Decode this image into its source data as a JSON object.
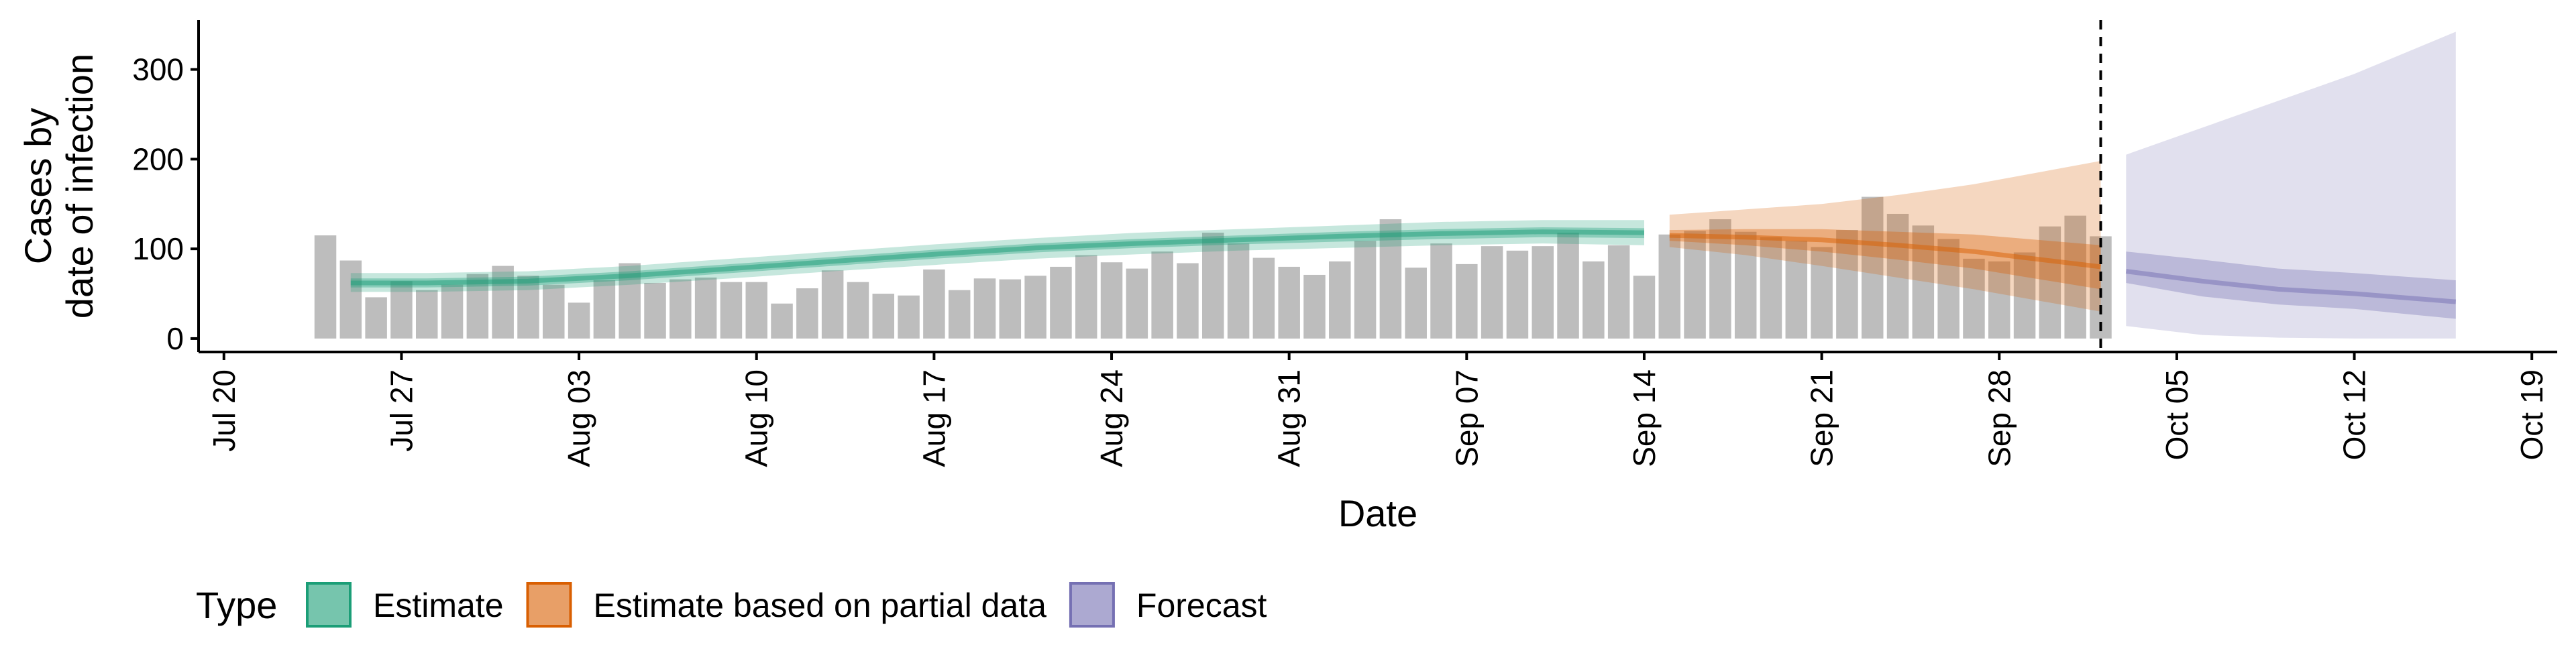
{
  "chart_data": {
    "type": "bar",
    "title": "",
    "xlabel": "Date",
    "ylabel_lines": [
      "Cases by",
      "date of infection"
    ],
    "yticks": [
      0,
      100,
      200,
      300
    ],
    "ylim": [
      -15,
      355
    ],
    "xlim": [
      "2020-07-19",
      "2020-10-20"
    ],
    "xtick_dates": [
      "2020-07-20",
      "2020-07-27",
      "2020-08-03",
      "2020-08-10",
      "2020-08-17",
      "2020-08-24",
      "2020-08-31",
      "2020-09-07",
      "2020-09-14",
      "2020-09-21",
      "2020-09-28",
      "2020-10-05",
      "2020-10-12",
      "2020-10-19"
    ],
    "xtick_labels": [
      "Jul 20",
      "Jul 27",
      "Aug 03",
      "Aug 10",
      "Aug 17",
      "Aug 24",
      "Aug 31",
      "Sep 07",
      "Sep 14",
      "Sep 21",
      "Sep 28",
      "Oct 05",
      "Oct 12",
      "Oct 19"
    ],
    "grid": false,
    "legend_position": "bottom-left",
    "reference_line_date": "2020-10-02",
    "colors": {
      "bar": "#bdbdbd",
      "estimate": "#1b9e77",
      "partial": "#d95f02",
      "forecast": "#7570b3"
    },
    "legend": {
      "title": "Type",
      "items": [
        {
          "label": "Estimate",
          "key": "estimate"
        },
        {
          "label": "Estimate based on partial data",
          "key": "partial"
        },
        {
          "label": "Forecast",
          "key": "forecast"
        }
      ]
    },
    "reported_cases": {
      "start_date": "2020-07-24",
      "values": [
        115,
        87,
        46,
        64,
        54,
        60,
        72,
        81,
        70,
        60,
        40,
        65,
        84,
        62,
        66,
        68,
        63,
        63,
        39,
        56,
        76,
        63,
        50,
        48,
        77,
        54,
        67,
        66,
        70,
        80,
        93,
        85,
        78,
        97,
        84,
        118,
        106,
        90,
        80,
        71,
        86,
        109,
        133,
        79,
        106,
        83,
        103,
        98,
        103,
        118,
        86,
        104,
        70,
        116,
        120,
        133,
        119,
        113,
        109,
        102,
        121,
        158,
        139,
        126,
        111,
        89,
        86,
        96,
        125,
        137,
        114
      ]
    },
    "series": [
      {
        "name": "Estimate",
        "key": "estimate",
        "dates": [
          "2020-07-25",
          "2020-07-28",
          "2020-08-01",
          "2020-08-05",
          "2020-08-09",
          "2020-08-13",
          "2020-08-17",
          "2020-08-21",
          "2020-08-25",
          "2020-08-29",
          "2020-09-02",
          "2020-09-06",
          "2020-09-10",
          "2020-09-14"
        ],
        "median": [
          62,
          62,
          64,
          70,
          78,
          86,
          94,
          101,
          106,
          110,
          114,
          117,
          119,
          118
        ],
        "lower50": [
          57,
          57,
          59,
          65,
          73,
          81,
          89,
          96,
          101,
          105,
          108,
          111,
          113,
          112
        ],
        "upper50": [
          67,
          67,
          69,
          75,
          83,
          91,
          99,
          106,
          111,
          115,
          119,
          122,
          124,
          123
        ],
        "lower90": [
          52,
          52,
          54,
          60,
          67,
          75,
          82,
          89,
          94,
          98,
          101,
          104,
          106,
          104
        ],
        "upper90": [
          73,
          73,
          75,
          81,
          89,
          97,
          105,
          112,
          118,
          122,
          126,
          130,
          132,
          132
        ]
      },
      {
        "name": "Estimate based on partial data",
        "key": "partial",
        "dates": [
          "2020-09-15",
          "2020-09-18",
          "2020-09-21",
          "2020-09-24",
          "2020-09-27",
          "2020-10-02"
        ],
        "median": [
          115,
          113,
          110,
          104,
          97,
          80
        ],
        "lower50": [
          109,
          104,
          97,
          88,
          78,
          55
        ],
        "upper50": [
          121,
          122,
          122,
          119,
          116,
          104
        ],
        "lower90": [
          102,
          93,
          81,
          68,
          55,
          30
        ],
        "upper90": [
          138,
          144,
          150,
          160,
          172,
          198
        ]
      },
      {
        "name": "Forecast",
        "key": "forecast",
        "dates": [
          "2020-10-03",
          "2020-10-06",
          "2020-10-09",
          "2020-10-12",
          "2020-10-16"
        ],
        "median": [
          75,
          64,
          55,
          50,
          41
        ],
        "lower50": [
          62,
          47,
          38,
          33,
          22
        ],
        "upper50": [
          97,
          88,
          78,
          73,
          65
        ],
        "lower90": [
          14,
          4,
          1,
          0,
          0
        ],
        "upper90": [
          205,
          235,
          265,
          295,
          342
        ]
      }
    ]
  }
}
